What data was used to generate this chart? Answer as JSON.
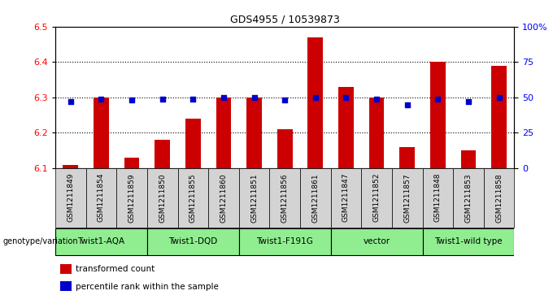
{
  "title": "GDS4955 / 10539873",
  "samples": [
    "GSM1211849",
    "GSM1211854",
    "GSM1211859",
    "GSM1211850",
    "GSM1211855",
    "GSM1211860",
    "GSM1211851",
    "GSM1211856",
    "GSM1211861",
    "GSM1211847",
    "GSM1211852",
    "GSM1211857",
    "GSM1211848",
    "GSM1211853",
    "GSM1211858"
  ],
  "bar_values": [
    6.11,
    6.3,
    6.13,
    6.18,
    6.24,
    6.3,
    6.3,
    6.21,
    6.47,
    6.33,
    6.3,
    6.16,
    6.4,
    6.15,
    6.39
  ],
  "percentile_values": [
    47,
    49,
    48,
    49,
    49,
    50,
    50,
    48,
    50,
    50,
    49,
    45,
    49,
    47,
    50
  ],
  "groups": [
    {
      "label": "Twist1-AQA",
      "indices": [
        0,
        1,
        2
      ]
    },
    {
      "label": "Twist1-DQD",
      "indices": [
        3,
        4,
        5
      ]
    },
    {
      "label": "Twist1-F191G",
      "indices": [
        6,
        7,
        8
      ]
    },
    {
      "label": "vector",
      "indices": [
        9,
        10,
        11
      ]
    },
    {
      "label": "Twist1-wild type",
      "indices": [
        12,
        13,
        14
      ]
    }
  ],
  "ylim_left": [
    6.1,
    6.5
  ],
  "ylim_right": [
    0,
    100
  ],
  "yticks_left": [
    6.1,
    6.2,
    6.3,
    6.4,
    6.5
  ],
  "yticks_right": [
    0,
    25,
    50,
    75,
    100
  ],
  "bar_color": "#cc0000",
  "percentile_color": "#0000cc",
  "bar_bottom": 6.1,
  "grid_values": [
    6.2,
    6.3,
    6.4
  ],
  "group_color": "#90EE90",
  "sample_box_color": "#d3d3d3",
  "xlabel_area": "genotype/variation",
  "legend_bar": "transformed count",
  "legend_pct": "percentile rank within the sample"
}
